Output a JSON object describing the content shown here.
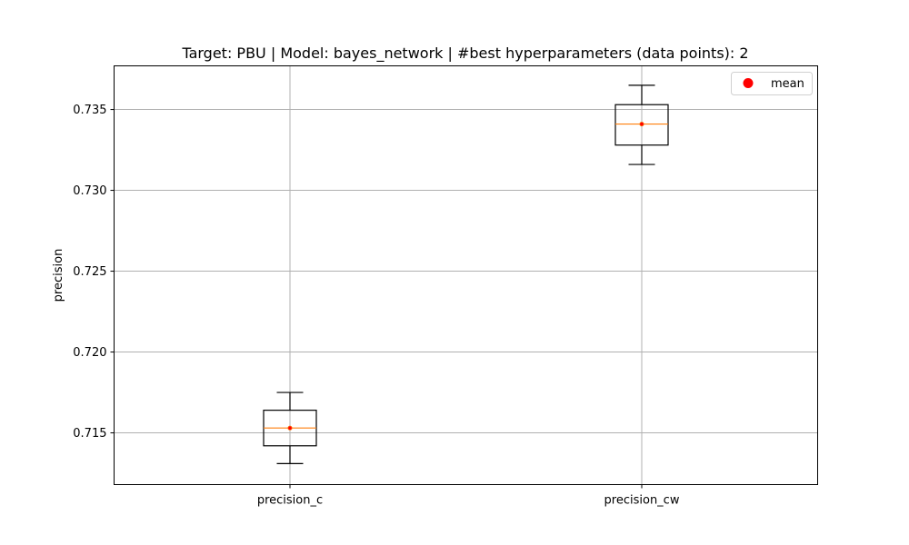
{
  "chart_data": {
    "type": "box",
    "title": "Target: PBU | Model: bayes_network | #best hyperparameters (data points): 2",
    "xlabel": "",
    "ylabel": "precision",
    "categories": [
      "precision_c",
      "precision_cw"
    ],
    "ylim": [
      0.7118,
      0.7377
    ],
    "yticks": [
      0.715,
      0.72,
      0.725,
      0.73,
      0.735
    ],
    "ytick_labels": [
      "0.715",
      "0.720",
      "0.725",
      "0.730",
      "0.735"
    ],
    "boxes": [
      {
        "category": "precision_c",
        "whislo": 0.7131,
        "q1": 0.7142,
        "median": 0.7153,
        "q3": 0.7164,
        "whishi": 0.7175,
        "mean": 0.7153
      },
      {
        "category": "precision_cw",
        "whislo": 0.7316,
        "q1": 0.7328,
        "median": 0.7341,
        "q3": 0.7353,
        "whishi": 0.7365,
        "mean": 0.7341
      }
    ],
    "grid": true,
    "legend": {
      "position": "top-right",
      "entries": [
        {
          "label": "mean",
          "color": "#ff0000"
        }
      ]
    },
    "colors": {
      "box": "#000000",
      "median": "#ff7f0e",
      "mean": "#ff0000",
      "grid": "#b0b0b0"
    }
  }
}
